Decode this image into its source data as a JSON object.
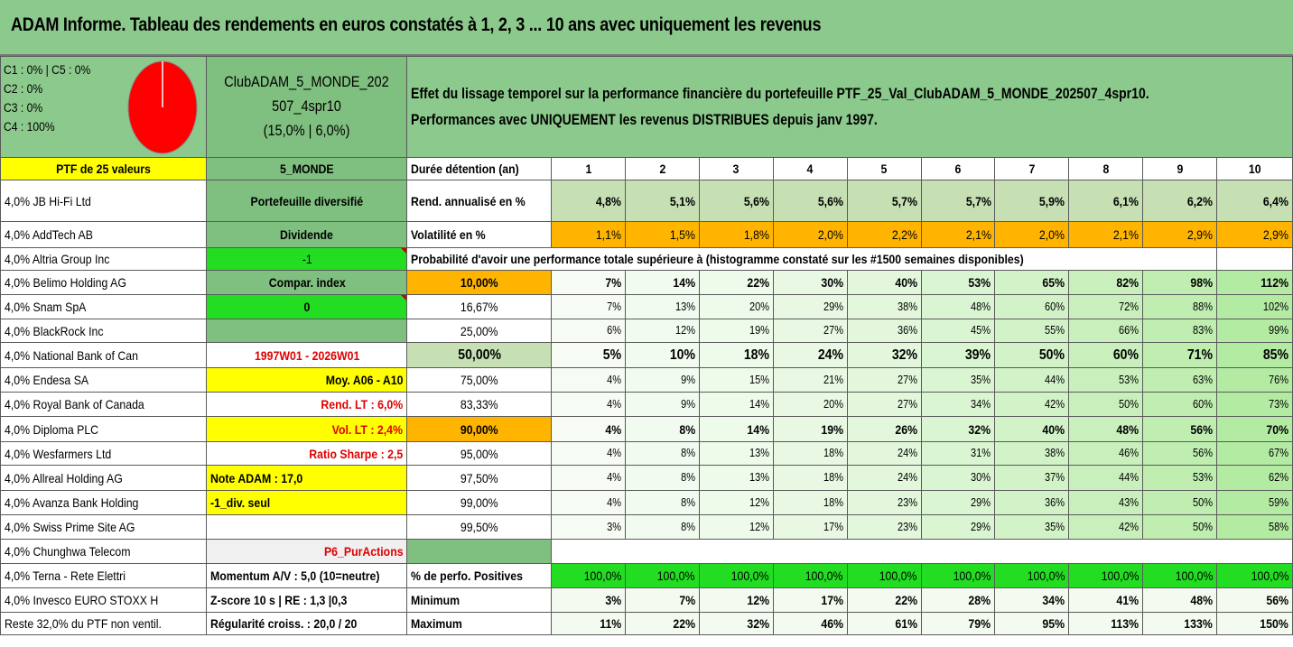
{
  "title": "ADAM Informe. Tableau des rendements en euros constatés à 1, 2, 3 ... 10 ans avec uniquement les revenus",
  "legend": [
    "C1 : 0% | C5 : 0%",
    "C2 : 0%",
    "C3 : 0%",
    "C4 : 100%"
  ],
  "pie_color": "#ff0000",
  "club": {
    "line1": "ClubADAM_5_MONDE_202",
    "line2": "507_4spr10",
    "line3": "(15,0% | 6,0%)"
  },
  "header_text": {
    "line1": "Effet du lissage temporel sur la performance financière du portefeuille PTF_25_Val_ClubADAM_5_MONDE_202507_4spr10.",
    "line2": "Performances avec UNIQUEMENT les revenus DISTRIBUES depuis janv 1997."
  },
  "ptf_label": "PTF de 25 valeurs",
  "monde_label": "5_MONDE",
  "duree_label": "Durée détention (an)",
  "years": [
    "1",
    "2",
    "3",
    "4",
    "5",
    "6",
    "7",
    "8",
    "9",
    "10"
  ],
  "holdings": [
    "4,0% JB Hi-Fi Ltd",
    "4,0% AddTech AB",
    "4,0% Altria Group Inc",
    "4,0% Belimo Holding AG",
    "4,0% Snam SpA",
    "4,0% BlackRock Inc",
    "4,0% National Bank of Can",
    "4,0% Endesa SA",
    "4,0% Royal Bank of Canada",
    "4,0% Diploma PLC",
    "4,0% Wesfarmers Ltd",
    "4,0% Allreal Holding AG",
    "4,0% Avanza Bank Holding",
    "4,0% Swiss Prime Site AG",
    "4,0% Chunghwa Telecom",
    "4,0% Terna - Rete Elettri",
    "4,0% Invesco EURO STOXX H",
    "Reste 32,0% du PTF non ventil."
  ],
  "col2": {
    "portefeuille": "Portefeuille diversifié",
    "dividende": "Dividende",
    "minus1": "-1",
    "compar": "Compar. index",
    "zero": "0",
    "period": "1997W01 - 2026W01",
    "moy": "Moy. A06 - A10",
    "rend_lt": "Rend. LT : 6,0%",
    "vol_lt": "Vol. LT : 2,4%",
    "sharpe": "Ratio Sharpe : 2,5",
    "note": "Note ADAM : 17,0",
    "div_seul": "-1_div. seul",
    "p6": "P6_PurActions",
    "momentum": "Momentum A/V : 5,0 (10=neutre)",
    "zscore": "Z-score 10 s | RE : 1,3 |0,3",
    "regularite": "Régularité croiss. : 20,0 / 20"
  },
  "rend_label": "Rend. annualisé en %",
  "vol_label": "Volatilité en %",
  "prob_label": "Probabilité d'avoir une performance totale supérieure à (histogramme constaté sur les #1500 semaines disponibles)",
  "positives_label": "% de perfo. Positives",
  "min_label": "Minimum",
  "max_label": "Maximum",
  "chart_data": {
    "type": "table",
    "title": "ADAM Informe. Tableau des rendements en euros constatés à 1, 2, 3 ... 10 ans avec uniquement les revenus",
    "columns": [
      "1",
      "2",
      "3",
      "4",
      "5",
      "6",
      "7",
      "8",
      "9",
      "10"
    ],
    "rend": [
      "4,8%",
      "5,1%",
      "5,6%",
      "5,6%",
      "5,7%",
      "5,7%",
      "5,9%",
      "6,1%",
      "6,2%",
      "6,4%"
    ],
    "vol": [
      "1,1%",
      "1,5%",
      "1,8%",
      "2,0%",
      "2,2%",
      "2,1%",
      "2,0%",
      "2,1%",
      "2,9%",
      "2,9%"
    ],
    "prob_rows": [
      {
        "threshold": "10,00%",
        "values": [
          "7%",
          "14%",
          "22%",
          "30%",
          "40%",
          "53%",
          "65%",
          "82%",
          "98%",
          "112%"
        ]
      },
      {
        "threshold": "16,67%",
        "values": [
          "7%",
          "13%",
          "20%",
          "29%",
          "38%",
          "48%",
          "60%",
          "72%",
          "88%",
          "102%"
        ]
      },
      {
        "threshold": "25,00%",
        "values": [
          "6%",
          "12%",
          "19%",
          "27%",
          "36%",
          "45%",
          "55%",
          "66%",
          "83%",
          "99%"
        ]
      },
      {
        "threshold": "50,00%",
        "values": [
          "5%",
          "10%",
          "18%",
          "24%",
          "32%",
          "39%",
          "50%",
          "60%",
          "71%",
          "85%"
        ]
      },
      {
        "threshold": "75,00%",
        "values": [
          "4%",
          "9%",
          "15%",
          "21%",
          "27%",
          "35%",
          "44%",
          "53%",
          "63%",
          "76%"
        ]
      },
      {
        "threshold": "83,33%",
        "values": [
          "4%",
          "9%",
          "14%",
          "20%",
          "27%",
          "34%",
          "42%",
          "50%",
          "60%",
          "73%"
        ]
      },
      {
        "threshold": "90,00%",
        "values": [
          "4%",
          "8%",
          "14%",
          "19%",
          "26%",
          "32%",
          "40%",
          "48%",
          "56%",
          "70%"
        ]
      },
      {
        "threshold": "95,00%",
        "values": [
          "4%",
          "8%",
          "13%",
          "18%",
          "24%",
          "31%",
          "38%",
          "46%",
          "56%",
          "67%"
        ]
      },
      {
        "threshold": "97,50%",
        "values": [
          "4%",
          "8%",
          "13%",
          "18%",
          "24%",
          "30%",
          "37%",
          "44%",
          "53%",
          "62%"
        ]
      },
      {
        "threshold": "99,00%",
        "values": [
          "4%",
          "8%",
          "12%",
          "18%",
          "23%",
          "29%",
          "36%",
          "43%",
          "50%",
          "59%"
        ]
      },
      {
        "threshold": "99,50%",
        "values": [
          "3%",
          "8%",
          "12%",
          "17%",
          "23%",
          "29%",
          "35%",
          "42%",
          "50%",
          "58%"
        ]
      }
    ],
    "positives": [
      "100,0%",
      "100,0%",
      "100,0%",
      "100,0%",
      "100,0%",
      "100,0%",
      "100,0%",
      "100,0%",
      "100,0%",
      "100,0%"
    ],
    "minimum": [
      "3%",
      "7%",
      "12%",
      "17%",
      "22%",
      "28%",
      "34%",
      "41%",
      "48%",
      "56%"
    ],
    "maximum": [
      "11%",
      "22%",
      "32%",
      "46%",
      "61%",
      "79%",
      "95%",
      "113%",
      "133%",
      "150%"
    ]
  }
}
